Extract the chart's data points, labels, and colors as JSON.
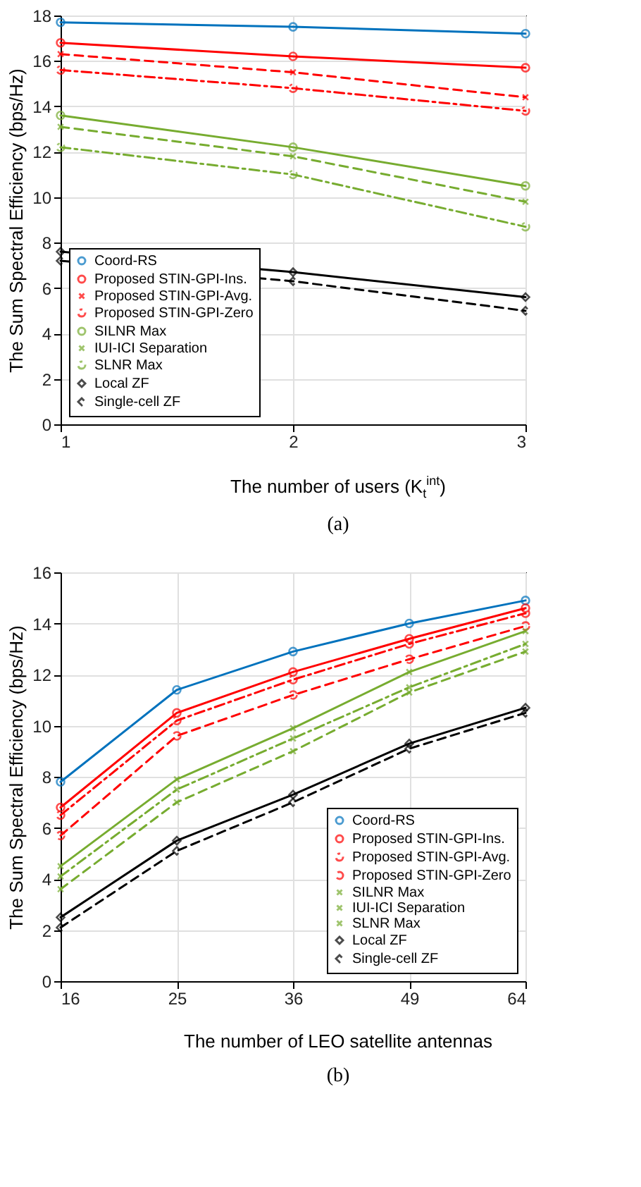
{
  "chart_data": [
    {
      "type": "line",
      "xlabel": "The number of users (K$_{t}$$^{int}$)",
      "ylabel": "The Sum Spectral Efficiency (bps/Hz)",
      "annotations": [
        "(a)"
      ],
      "x": [
        1,
        2,
        3
      ],
      "xlim": [
        1,
        3
      ],
      "xticks": [
        1,
        2,
        3
      ],
      "ylim": [
        0,
        18
      ],
      "yticks": [
        0,
        2,
        4,
        6,
        8,
        10,
        12,
        14,
        16,
        18
      ],
      "grid": true,
      "legend": "bottom left",
      "series": [
        {
          "name": "Coord-RS",
          "color": "#0072bd",
          "marker": "circle",
          "line_style": "solid",
          "values": [
            17.7,
            17.5,
            17.2
          ]
        },
        {
          "name": "Proposed STIN-GPI-Ins.",
          "color": "#ff0000",
          "marker": "circle",
          "line_style": "solid",
          "values": [
            16.8,
            16.2,
            15.7
          ]
        },
        {
          "name": "Proposed STIN-GPI-Avg.",
          "color": "#ff0000",
          "marker": "cross",
          "line_style": "dashed",
          "values": [
            16.3,
            15.5,
            14.4
          ]
        },
        {
          "name": "Proposed STIN-GPI-Zero",
          "color": "#ff0000",
          "marker": "circle",
          "line_style": "dotted",
          "values": [
            15.6,
            14.8,
            13.8
          ]
        },
        {
          "name": "SILNR Max",
          "color": "#77ac30",
          "marker": "circle",
          "line_style": "solid",
          "values": [
            13.6,
            12.2,
            10.5
          ]
        },
        {
          "name": "IUI-ICI Separation",
          "color": "#77ac30",
          "marker": "cross",
          "line_style": "dashed",
          "values": [
            13.1,
            11.8,
            9.8
          ]
        },
        {
          "name": "SLNR Max",
          "color": "#77ac30",
          "marker": "circle",
          "line_style": "dotted",
          "values": [
            12.2,
            11.0,
            8.7
          ]
        },
        {
          "name": "Local ZF",
          "color": "#000000",
          "marker": "diamond",
          "line_style": "solid",
          "values": [
            7.6,
            6.7,
            5.6
          ]
        },
        {
          "name": "Single-cell ZF",
          "color": "#000000",
          "marker": "diamond",
          "line_style": "dashed",
          "values": [
            7.2,
            6.3,
            5.0
          ]
        }
      ]
    },
    {
      "type": "line",
      "xlabel": "The number of LEO satellite antennas",
      "ylabel": "The Sum Spectral Efficiency (bps/Hz)",
      "annotations": [
        "(b)"
      ],
      "categories": [
        "16",
        "25",
        "36",
        "49",
        "64"
      ],
      "ylim": [
        0,
        16
      ],
      "yticks": [
        0,
        2,
        4,
        6,
        8,
        10,
        12,
        14,
        16
      ],
      "grid": true,
      "legend": "bottom right",
      "series": [
        {
          "name": "Coord-RS",
          "color": "#0072bd",
          "marker": "circle",
          "line_style": "solid",
          "values": [
            7.8,
            11.4,
            12.9,
            14.0,
            14.9
          ]
        },
        {
          "name": "Proposed STIN-GPI-Ins.",
          "color": "#ff0000",
          "marker": "circle",
          "line_style": "solid",
          "values": [
            6.8,
            10.5,
            12.1,
            13.4,
            14.6
          ]
        },
        {
          "name": "Proposed STIN-GPI-Avg.",
          "color": "#ff0000",
          "marker": "circle",
          "line_style": "dotted",
          "values": [
            6.5,
            10.2,
            11.8,
            13.2,
            14.4
          ]
        },
        {
          "name": "Proposed STIN-GPI-Zero",
          "color": "#ff0000",
          "marker": "circle",
          "line_style": "dashed",
          "values": [
            5.7,
            9.6,
            11.2,
            12.6,
            13.9
          ]
        },
        {
          "name": "SILNR Max",
          "color": "#77ac30",
          "marker": "cross",
          "line_style": "solid",
          "values": [
            4.5,
            7.9,
            9.9,
            12.1,
            13.7
          ]
        },
        {
          "name": "IUI-ICI Separation",
          "color": "#77ac30",
          "marker": "cross",
          "line_style": "dashed",
          "values": [
            3.6,
            7.0,
            9.0,
            11.3,
            12.9
          ]
        },
        {
          "name": "SLNR Max",
          "color": "#77ac30",
          "marker": "cross",
          "line_style": "dotted",
          "values": [
            4.1,
            7.5,
            9.5,
            11.5,
            13.2
          ]
        },
        {
          "name": "Local ZF",
          "color": "#000000",
          "marker": "diamond",
          "line_style": "solid",
          "values": [
            2.5,
            5.5,
            7.3,
            9.3,
            10.7
          ]
        },
        {
          "name": "Single-cell ZF",
          "color": "#000000",
          "marker": "diamond",
          "line_style": "dashed",
          "values": [
            2.1,
            5.1,
            7.0,
            9.1,
            10.5
          ]
        }
      ]
    }
  ]
}
